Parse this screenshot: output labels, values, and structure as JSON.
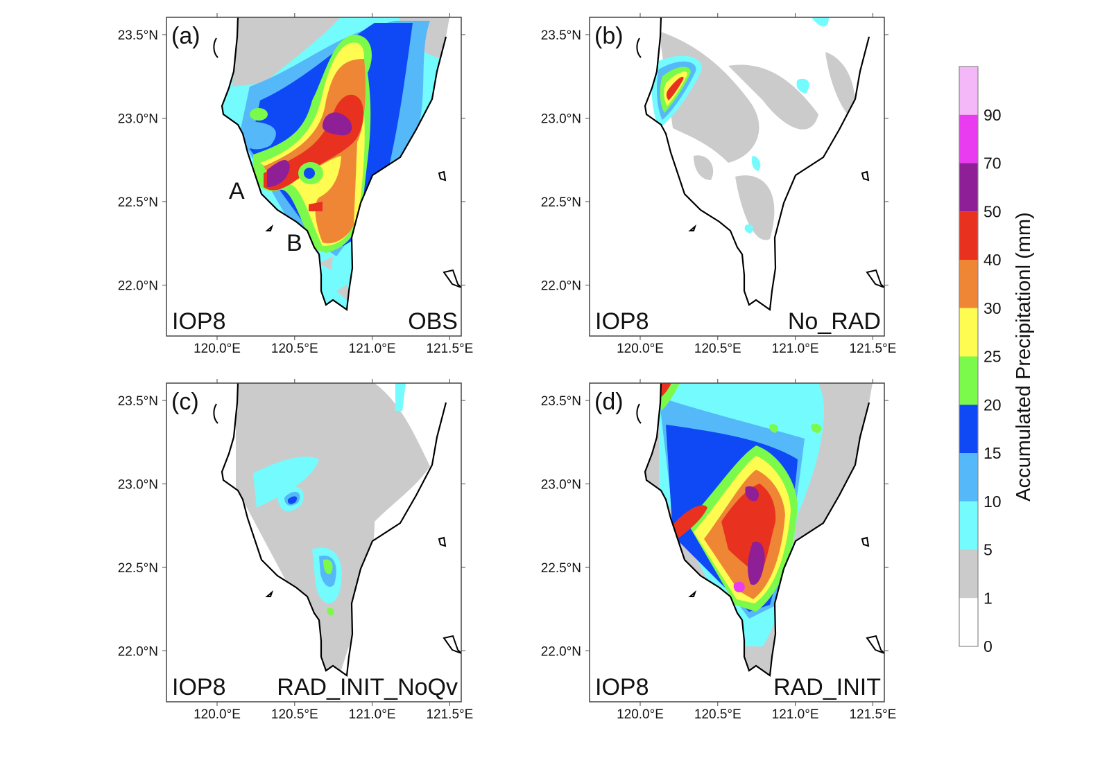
{
  "figure": {
    "lon_ticks": [
      "120.0°E",
      "120.5°E",
      "121.0°E",
      "121.5°E"
    ],
    "lat_ticks": [
      "23.5°N",
      "23.0°N",
      "22.5°N",
      "22.0°N"
    ],
    "lon_tick_values": [
      120.0,
      120.5,
      121.0,
      121.5
    ],
    "lat_tick_values": [
      23.5,
      23.0,
      22.5,
      22.0
    ],
    "lon_range": [
      119.67,
      121.57
    ],
    "lat_range": [
      21.7,
      23.6
    ],
    "panels": [
      {
        "label": "(a)",
        "case": "IOP8",
        "experiment": "OBS",
        "point_labels": [
          "A",
          "B"
        ]
      },
      {
        "label": "(b)",
        "case": "IOP8",
        "experiment": "No_RAD"
      },
      {
        "label": "(c)",
        "case": "IOP8",
        "experiment": "RAD_INIT_NoQv"
      },
      {
        "label": "(d)",
        "case": "IOP8",
        "experiment": "RAD_INIT"
      }
    ]
  },
  "colorbar": {
    "title": "Accumulated Precipitationl (mm)",
    "levels": [
      "90",
      "70",
      "50",
      "40",
      "30",
      "25",
      "20",
      "15",
      "10",
      "5",
      "1",
      "0"
    ],
    "colors": [
      "#f4b8f8",
      "#e93cf0",
      "#8f1f96",
      "#e8321f",
      "#ee8636",
      "#fefb51",
      "#7cfa4b",
      "#0f48f5",
      "#55b8f8",
      "#74fbfd",
      "#cbcbcb",
      "#ffffff"
    ]
  }
}
